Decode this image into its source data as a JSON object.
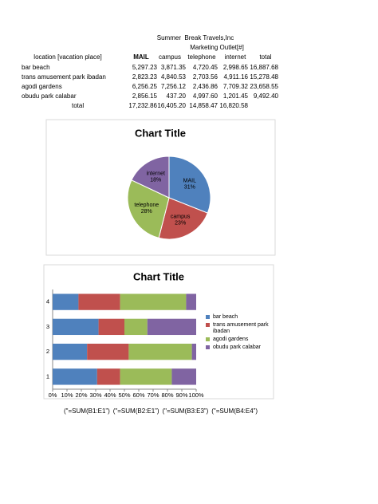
{
  "header": {
    "title": "Summer  Break Travels,Inc",
    "subtitle": "Marketing Outlet[#]"
  },
  "table": {
    "columns": [
      "location [vacation place]",
      "MAIL",
      "campus",
      "telephone",
      "internet",
      "total"
    ],
    "rows": [
      [
        "bar beach",
        "5,297.23",
        "3,871.35",
        "4,720.45",
        "2,998.65",
        "16,887.68"
      ],
      [
        "trans amusement park ibadan",
        "2,823.23",
        "4,840.53",
        "2,703.56",
        "4,911.16",
        "15,278.48"
      ],
      [
        "agodi gardens",
        "6,256.25",
        "7,256.12",
        "2,436.86",
        "7,709.32",
        "23,658.55"
      ],
      [
        "obudu park calabar",
        "2,856.15",
        "437.20",
        "4,997.60",
        "1,201.45",
        "9,492.40"
      ],
      [
        "total",
        "17,232.86",
        "16,405.20",
        "14,858.47",
        "16,820.58"
      ]
    ]
  },
  "chart_data": [
    {
      "type": "pie",
      "title": "Chart Title",
      "categories": [
        "MAIL",
        "campus",
        "telephone",
        "internet"
      ],
      "values": [
        31,
        23,
        28,
        18
      ],
      "value_labels": [
        "31%",
        "23%",
        "28%",
        "18%"
      ],
      "colors": [
        "#4f81bd",
        "#c0504d",
        "#9bbb59",
        "#8064a2"
      ]
    },
    {
      "type": "stacked-bar-horizontal",
      "title": "Chart Title",
      "categories": [
        "1",
        "2",
        "3",
        "4"
      ],
      "series": [
        {
          "name": "bar beach",
          "color": "#4f81bd",
          "values": [
            31,
            24,
            32,
            18
          ]
        },
        {
          "name": "trans amusement park ibadan",
          "color": "#c0504d",
          "values": [
            16,
            29,
            18,
            29
          ]
        },
        {
          "name": "agodi gardens",
          "color": "#9bbb59",
          "values": [
            36,
            44,
            16,
            46
          ]
        },
        {
          "name": "obudu park calabar",
          "color": "#8064a2",
          "values": [
            17,
            3,
            34,
            7
          ]
        }
      ],
      "xlim": [
        0,
        100
      ],
      "xticks": [
        {
          "value": 0,
          "label": "0%"
        },
        {
          "value": 10,
          "label": "10%"
        },
        {
          "value": 20,
          "label": "20%"
        },
        {
          "value": 30,
          "label": "30%"
        },
        {
          "value": 40,
          "label": "40%"
        },
        {
          "value": 50,
          "label": "50%"
        },
        {
          "value": 60,
          "label": "60%"
        },
        {
          "value": 70,
          "label": "70%"
        },
        {
          "value": 80,
          "label": "80%"
        },
        {
          "value": 90,
          "label": "90%"
        },
        {
          "value": 100,
          "label": "100%"
        }
      ],
      "legend": "right"
    }
  ],
  "formulas": [
    "(\"=SUM(B1:E1”)",
    "(\"=SUM(B2:E1”)",
    "(\"=SUM(B3:E3”)",
    "(\"=SUM(B4:E4”)"
  ]
}
